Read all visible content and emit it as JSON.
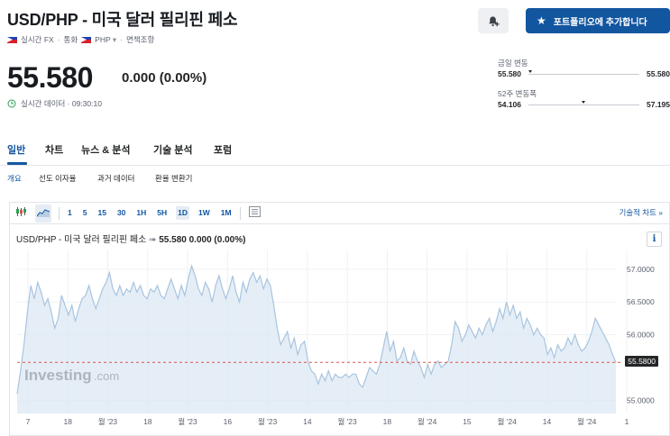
{
  "header": {
    "title": "USD/PHP - 미국 달러 필리핀 페소",
    "sub_realtime": "실시간 FX",
    "sub_currency_label": "통화",
    "sub_currency": "PHP",
    "sub_disclaimer": "면책조항",
    "add_portfolio": "포트폴리오에 추가합니다"
  },
  "quote": {
    "price": "55.580",
    "change": "0.000 (0.00%)",
    "realtime_text": "실시간 데이터 · 09:30:10"
  },
  "ranges": {
    "day_label": "금일 변동",
    "day_low": "55.580",
    "day_high": "55.580",
    "day_position": 0.0,
    "week52_label": "52주 변동폭",
    "week52_low": "54.106",
    "week52_high": "57.195",
    "week52_position": 0.48
  },
  "tabs": [
    "일반",
    "차트",
    "뉴스 & 분석",
    "기술 분석",
    "포럼"
  ],
  "subtabs": [
    "개요",
    "선도 이자율",
    "과거 데이터",
    "환율 변환기"
  ],
  "toolbar": {
    "intervals": [
      "1",
      "5",
      "15",
      "30",
      "1H",
      "5H",
      "1D",
      "1W",
      "1M"
    ],
    "active_interval": "1D",
    "tech_chart": "기술적 차트 »"
  },
  "chart": {
    "title_name": "USD/PHP - 미국 달러 필리핀 페소",
    "price": "55.580",
    "change": "0.000 (0.00%)",
    "watermark": "Investing",
    "watermark_suffix": ".com",
    "current_label": "55.5800",
    "info": "i",
    "colors": {
      "line": "#a8c4e0",
      "fill": "#dce8f3",
      "ref": "#d9534f"
    }
  },
  "chart_data": {
    "type": "area",
    "y_ticks": [
      "57.0000",
      "56.5000",
      "56.0000",
      "55.0000"
    ],
    "y_tick_values": [
      57.0,
      56.5,
      56.0,
      55.0
    ],
    "ylim": [
      54.8,
      57.3
    ],
    "x_ticks": [
      "7",
      "18",
      "월 '23",
      "18",
      "월 '23",
      "16",
      "월 '23",
      "14",
      "월 '23",
      "18",
      "월 '24",
      "15",
      "월 '24",
      "14",
      "월 '24",
      "1"
    ],
    "reference_value": 55.58,
    "values": [
      55.1,
      55.45,
      55.85,
      56.35,
      56.75,
      56.55,
      56.8,
      56.65,
      56.45,
      56.55,
      56.35,
      56.1,
      56.25,
      56.6,
      56.45,
      56.3,
      56.45,
      56.2,
      56.4,
      56.55,
      56.6,
      56.75,
      56.55,
      56.4,
      56.55,
      56.7,
      56.8,
      56.95,
      56.7,
      56.6,
      56.75,
      56.6,
      56.7,
      56.65,
      56.8,
      56.65,
      56.75,
      56.6,
      56.55,
      56.7,
      56.65,
      56.75,
      56.6,
      56.55,
      56.7,
      56.85,
      56.7,
      56.55,
      56.75,
      56.6,
      56.85,
      57.05,
      56.9,
      56.7,
      56.6,
      56.8,
      56.7,
      56.5,
      56.75,
      56.9,
      56.7,
      56.55,
      56.7,
      56.9,
      56.65,
      56.5,
      56.8,
      56.65,
      56.85,
      56.95,
      56.8,
      56.9,
      56.7,
      56.85,
      56.75,
      56.45,
      56.1,
      55.85,
      55.95,
      56.05,
      55.8,
      55.95,
      55.7,
      55.85,
      55.9,
      55.6,
      55.45,
      55.4,
      55.25,
      55.4,
      55.3,
      55.45,
      55.3,
      55.4,
      55.35,
      55.35,
      55.4,
      55.35,
      55.4,
      55.4,
      55.25,
      55.2,
      55.35,
      55.5,
      55.45,
      55.4,
      55.55,
      55.8,
      56.05,
      55.75,
      55.9,
      55.6,
      55.65,
      55.8,
      55.6,
      55.55,
      55.75,
      55.6,
      55.5,
      55.35,
      55.55,
      55.4,
      55.55,
      55.6,
      55.5,
      55.55,
      55.6,
      55.85,
      56.2,
      56.1,
      55.9,
      56.0,
      56.15,
      56.05,
      55.95,
      56.1,
      56.0,
      56.15,
      56.25,
      56.05,
      56.2,
      56.4,
      56.25,
      56.5,
      56.3,
      56.45,
      56.25,
      56.35,
      56.1,
      56.25,
      56.15,
      56.0,
      56.1,
      56.0,
      55.95,
      55.7,
      55.8,
      55.65,
      55.85,
      55.75,
      55.8,
      55.95,
      55.85,
      56.0,
      55.85,
      55.75,
      55.8,
      55.9,
      56.05,
      56.25,
      56.15,
      56.05,
      55.95,
      55.85,
      55.7,
      55.58
    ]
  }
}
